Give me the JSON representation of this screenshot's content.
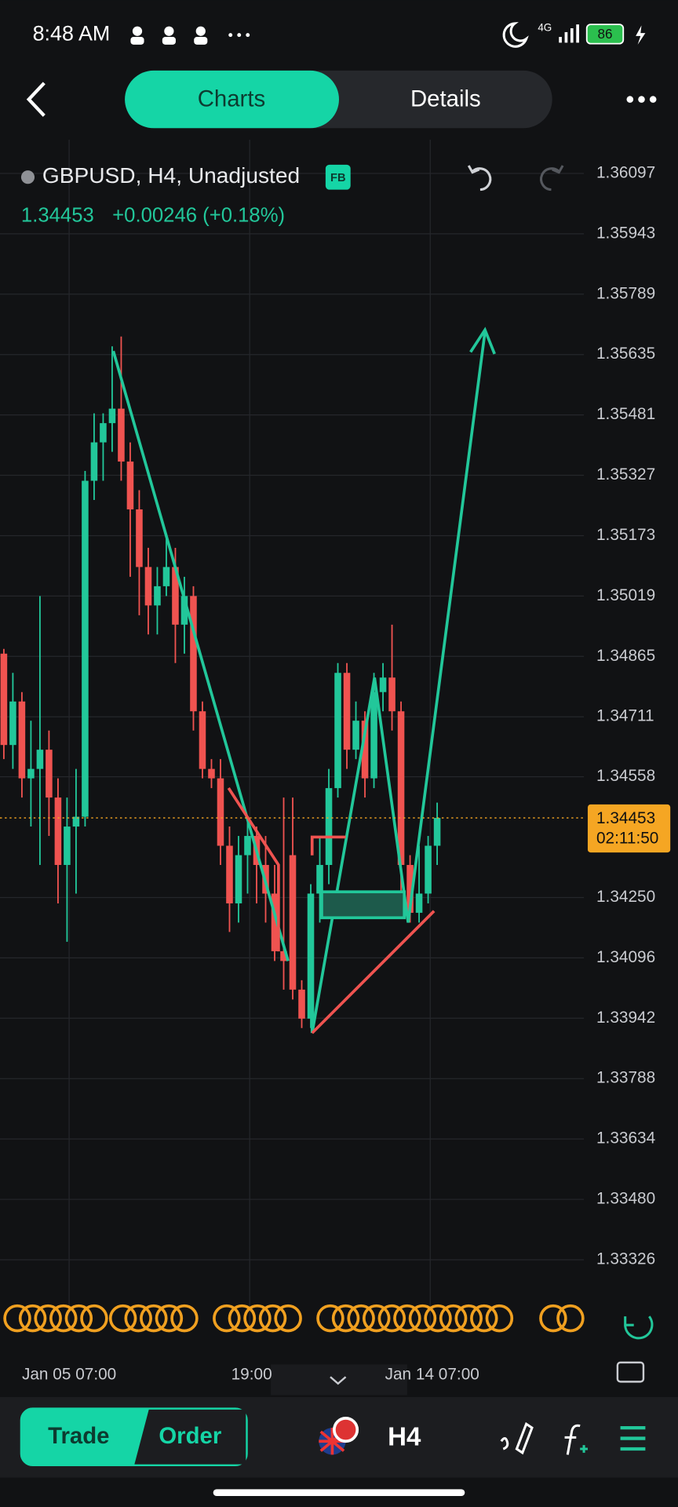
{
  "status_bar": {
    "time": "8:48 AM",
    "network": "4G",
    "battery": "86"
  },
  "tabs": [
    "Charts",
    "Details"
  ],
  "chart": {
    "type": "candlestick",
    "symbol": "GBPUSD, H4, Unadjusted",
    "badge": "FB",
    "change": "+0.00246 (+0.18%)",
    "current_price": 1.34453,
    "countdown": "02:11:50",
    "up_color": "#22c79a",
    "down_color": "#ef5350",
    "ylim": [
      1.33255,
      1.36183
    ],
    "yticks": [
      1.36097,
      1.35943,
      1.35789,
      1.35635,
      1.35481,
      1.35327,
      1.35173,
      1.35019,
      1.34865,
      1.34711,
      1.34558,
      {
        "value": 1.3425,
        "label": "1.34250"
      },
      1.34096,
      1.33942,
      1.33788,
      1.33634,
      {
        "value": 1.3348,
        "label": "1.33480"
      },
      1.33326
    ],
    "xticks": [
      "Jan 05 07:00",
      "19:00",
      "Jan 14 07:00"
    ],
    "candles": [
      [
        1.34872,
        1.34884,
        1.34603,
        1.34639
      ],
      [
        1.34639,
        1.34823,
        1.34578,
        1.3475
      ],
      [
        1.3475,
        1.34774,
        1.34505,
        1.34554
      ],
      [
        1.34554,
        1.34701,
        1.34431,
        1.34578
      ],
      [
        1.34578,
        1.35019,
        1.34333,
        1.34627
      ],
      [
        1.34627,
        1.34676,
        1.34407,
        1.34505
      ],
      [
        1.34505,
        1.34554,
        1.34235,
        1.34333
      ],
      [
        1.34333,
        1.34505,
        1.34137,
        1.34431
      ],
      [
        1.34431,
        1.34578,
        1.3426,
        1.34456
      ],
      [
        1.34456,
        1.35338,
        1.34431,
        1.35313
      ],
      [
        1.35313,
        1.35485,
        1.35264,
        1.35411
      ],
      [
        1.35411,
        1.35485,
        1.35313,
        1.3546
      ],
      [
        1.3546,
        1.35656,
        1.35387,
        1.35497
      ],
      [
        1.35497,
        1.35681,
        1.35313,
        1.35362
      ],
      [
        1.35362,
        1.35411,
        1.35068,
        1.3524
      ],
      [
        1.3524,
        1.35289,
        1.3497,
        1.35093
      ],
      [
        1.35093,
        1.35142,
        1.34921,
        1.34995
      ],
      [
        1.34995,
        1.35093,
        1.34921,
        1.35044
      ],
      [
        1.35044,
        1.35166,
        1.35019,
        1.35093
      ],
      [
        1.35093,
        1.35142,
        1.34848,
        1.34946
      ],
      [
        1.34946,
        1.35068,
        1.34872,
        1.35019
      ],
      [
        1.35019,
        1.35044,
        1.34676,
        1.34725
      ],
      [
        1.34725,
        1.3475,
        1.34554,
        1.34578
      ],
      [
        1.34578,
        1.34603,
        1.34529,
        1.34554
      ],
      [
        1.34554,
        1.34603,
        1.34333,
        1.34382
      ],
      [
        1.34382,
        1.34431,
        1.34162,
        1.34235
      ],
      [
        1.34235,
        1.34407,
        1.34186,
        1.34358
      ],
      [
        1.34358,
        1.34456,
        1.3426,
        1.34407
      ],
      [
        1.34407,
        1.34431,
        1.34235,
        1.34333
      ],
      [
        1.34333,
        1.34407,
        1.34186,
        1.3426
      ],
      [
        1.3426,
        1.34333,
        1.34088,
        1.34113
      ],
      [
        1.34113,
        1.34505,
        1.34015,
        1.34088
      ],
      [
        1.34358,
        1.34505,
        1.3399,
        1.34015
      ],
      [
        1.34015,
        1.34039,
        1.33917,
        1.33941
      ],
      [
        1.33941,
        1.34284,
        1.33917,
        1.3426
      ],
      [
        1.3426,
        1.34407,
        1.34186,
        1.34333
      ],
      [
        1.34333,
        1.34578,
        1.34284,
        1.34529
      ],
      [
        1.34529,
        1.34848,
        1.34505,
        1.34823
      ],
      [
        1.34823,
        1.34848,
        1.34578,
        1.34627
      ],
      [
        1.34627,
        1.3475,
        1.34603,
        1.34701
      ],
      [
        1.34701,
        1.34725,
        1.34505,
        1.34554
      ],
      [
        1.34554,
        1.34823,
        1.34529,
        1.34774
      ],
      [
        1.34774,
        1.34848,
        1.34725,
        1.34811
      ],
      [
        1.34811,
        1.34946,
        1.34676,
        1.34725
      ],
      [
        1.34725,
        1.3475,
        1.34211,
        1.34333
      ],
      [
        1.34333,
        1.34358,
        1.34186,
        1.34211
      ],
      [
        1.34211,
        1.34382,
        1.34186,
        1.3426
      ],
      [
        1.3426,
        1.34407,
        1.34235,
        1.34382
      ],
      [
        1.34382,
        1.34492,
        1.34333,
        1.34453
      ]
    ]
  },
  "bottom_bar": {
    "trade": "Trade",
    "order": "Order",
    "interval": "H4"
  }
}
